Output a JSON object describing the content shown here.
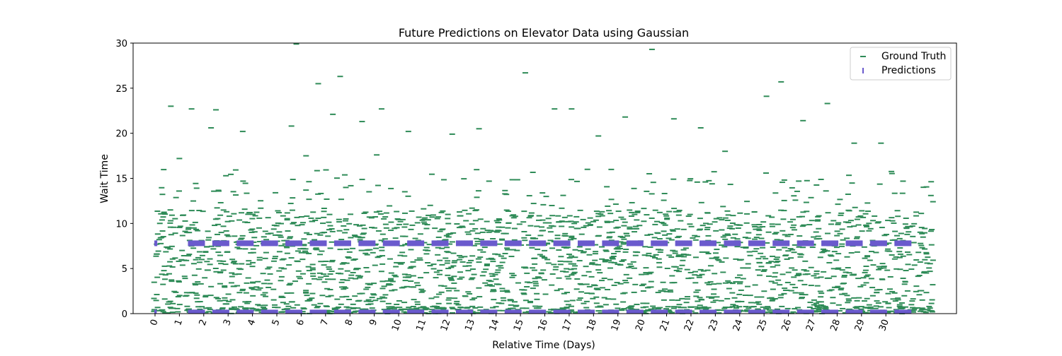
{
  "chart_data": {
    "type": "scatter",
    "title": "Future Predictions on Elevator Data using Gaussian",
    "xlabel": "Relative Time (Days)",
    "ylabel": "Wait Time",
    "xlim": [
      -0.9,
      32.9
    ],
    "ylim": [
      0,
      30
    ],
    "x_ticks": [
      0,
      1,
      2,
      3,
      4,
      5,
      6,
      7,
      8,
      9,
      10,
      11,
      12,
      13,
      14,
      15,
      16,
      17,
      18,
      19,
      20,
      21,
      22,
      23,
      24,
      25,
      26,
      27,
      28,
      29,
      30
    ],
    "x_tick_rotation": -70,
    "y_ticks": [
      0,
      5,
      10,
      15,
      20,
      25,
      30
    ],
    "grid": false,
    "legend": {
      "placement": "top-right",
      "entries": [
        "Ground Truth",
        "Predictions"
      ]
    },
    "series": [
      {
        "name": "Ground Truth",
        "marker": "horizontal-dash",
        "color": "#2e8b57",
        "values_note": "dense cloud of points per day; mostly between 0 and 12 with sparse outliers up to ~30",
        "outliers": [
          {
            "x": 0.65,
            "y": 23.0
          },
          {
            "x": 1.5,
            "y": 22.7
          },
          {
            "x": 2.3,
            "y": 20.6
          },
          {
            "x": 2.5,
            "y": 22.6
          },
          {
            "x": 3.6,
            "y": 20.2
          },
          {
            "x": 5.6,
            "y": 20.8
          },
          {
            "x": 5.8,
            "y": 29.9
          },
          {
            "x": 6.7,
            "y": 25.5
          },
          {
            "x": 7.3,
            "y": 22.1
          },
          {
            "x": 7.6,
            "y": 26.3
          },
          {
            "x": 8.5,
            "y": 21.3
          },
          {
            "x": 9.3,
            "y": 22.7
          },
          {
            "x": 10.4,
            "y": 20.2
          },
          {
            "x": 12.2,
            "y": 19.9
          },
          {
            "x": 13.3,
            "y": 20.5
          },
          {
            "x": 15.2,
            "y": 26.7
          },
          {
            "x": 16.4,
            "y": 22.7
          },
          {
            "x": 17.1,
            "y": 22.7
          },
          {
            "x": 18.2,
            "y": 19.7
          },
          {
            "x": 19.3,
            "y": 21.8
          },
          {
            "x": 20.4,
            "y": 29.3
          },
          {
            "x": 21.3,
            "y": 21.6
          },
          {
            "x": 22.4,
            "y": 20.6
          },
          {
            "x": 25.1,
            "y": 24.1
          },
          {
            "x": 25.7,
            "y": 25.7
          },
          {
            "x": 26.6,
            "y": 21.4
          },
          {
            "x": 27.6,
            "y": 23.3
          },
          {
            "x": 28.7,
            "y": 18.9
          },
          {
            "x": 29.8,
            "y": 18.9
          },
          {
            "x": 23.4,
            "y": 18.0
          },
          {
            "x": 1.0,
            "y": 17.2
          },
          {
            "x": 6.2,
            "y": 17.5
          },
          {
            "x": 9.1,
            "y": 17.6
          }
        ]
      },
      {
        "name": "Predictions",
        "marker": "vertical-bar",
        "color": "#6a5acd",
        "upper_level": 7.8,
        "lower_level": 0.2
      }
    ]
  }
}
